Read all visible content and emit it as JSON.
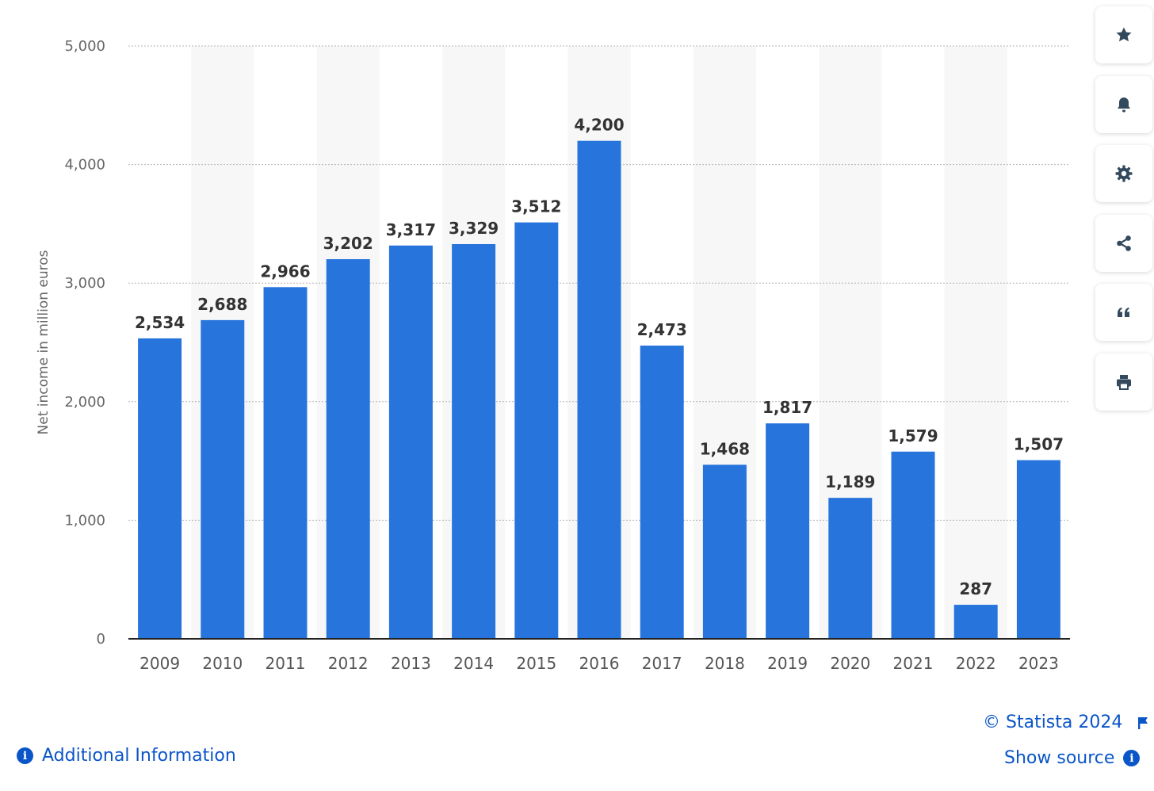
{
  "chart_data": {
    "type": "bar",
    "categories": [
      "2009",
      "2010",
      "2011",
      "2012",
      "2013",
      "2014",
      "2015",
      "2016",
      "2017",
      "2018",
      "2019",
      "2020",
      "2021",
      "2022",
      "2023"
    ],
    "values": [
      2534,
      2688,
      2966,
      3202,
      3317,
      3329,
      3512,
      4200,
      2473,
      1468,
      1817,
      1189,
      1579,
      287,
      1507
    ],
    "value_labels": [
      "2,534",
      "2,688",
      "2,966",
      "3,202",
      "3,317",
      "3,329",
      "3,512",
      "4,200",
      "2,473",
      "1,468",
      "1,817",
      "1,189",
      "1,579",
      "287",
      "1,507"
    ],
    "ylabel": "Net income in million euros",
    "xlabel": "",
    "title": "",
    "ylim": [
      0,
      5000
    ],
    "yticks": [
      0,
      1000,
      2000,
      3000,
      4000,
      5000
    ],
    "ytick_labels": [
      "0",
      "1,000",
      "2,000",
      "3,000",
      "4,000",
      "5,000"
    ],
    "grid": true,
    "bar_color": "#2775dc"
  },
  "toolbar": {
    "icons": [
      "star-icon",
      "bell-icon",
      "gear-icon",
      "share-icon",
      "quote-icon",
      "print-icon"
    ]
  },
  "footer": {
    "copyright": "© Statista 2024",
    "show_source": "Show source",
    "additional_info": "Additional Information"
  },
  "colors": {
    "accent": "#0a55c8",
    "bar": "#2775dc",
    "band": "#f7f7f7",
    "icon": "#33495d"
  }
}
